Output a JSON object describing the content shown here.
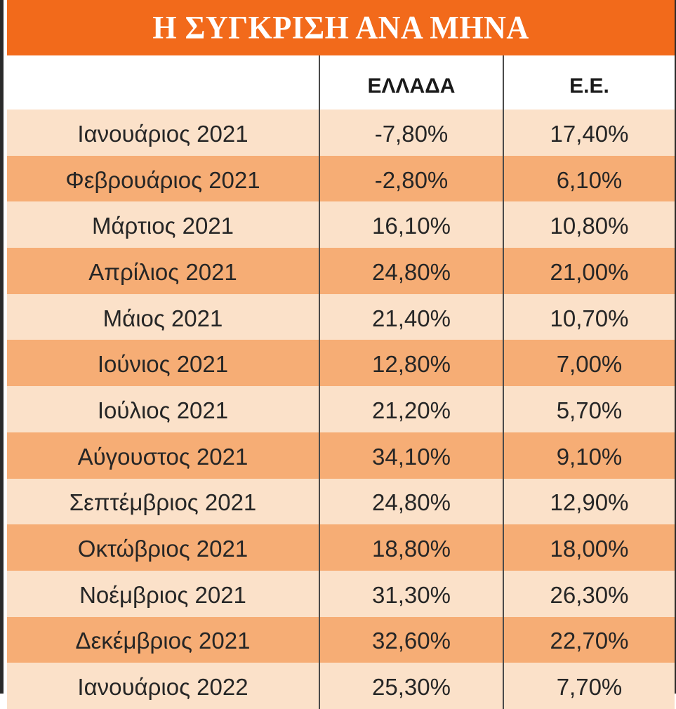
{
  "chart_data": {
    "type": "table",
    "title": "Η ΣΥΓΚΡΙΣΗ ΑΝΑ ΜΗΝΑ",
    "columns": [
      "",
      "ΕΛΛΑΔΑ",
      "Ε.Ε."
    ],
    "rows": [
      {
        "month": "Ιανουάριος 2021",
        "greece": "-7,80%",
        "eu": "17,40%"
      },
      {
        "month": "Φεβρουάριος 2021",
        "greece": "-2,80%",
        "eu": "6,10%"
      },
      {
        "month": "Μάρτιος 2021",
        "greece": "16,10%",
        "eu": "10,80%"
      },
      {
        "month": "Απρίλιος 2021",
        "greece": "24,80%",
        "eu": "21,00%"
      },
      {
        "month": "Μάιος 2021",
        "greece": "21,40%",
        "eu": "10,70%"
      },
      {
        "month": "Ιούνιος 2021",
        "greece": "12,80%",
        "eu": "7,00%"
      },
      {
        "month": "Ιούλιος 2021",
        "greece": "21,20%",
        "eu": "5,70%"
      },
      {
        "month": "Αύγουστος 2021",
        "greece": "34,10%",
        "eu": "9,10%"
      },
      {
        "month": "Σεπτέμβριος 2021",
        "greece": "24,80%",
        "eu": "12,90%"
      },
      {
        "month": "Οκτώβριος 2021",
        "greece": "18,80%",
        "eu": "18,00%"
      },
      {
        "month": "Νοέμβριος 2021",
        "greece": "31,30%",
        "eu": "26,30%"
      },
      {
        "month": "Δεκέμβριος 2021",
        "greece": "32,60%",
        "eu": "22,70%"
      },
      {
        "month": "Ιανουάριος 2022",
        "greece": "25,30%",
        "eu": "7,70%"
      }
    ]
  },
  "colors": {
    "title_bg": "#f26a1b",
    "row_light": "#fbe1c9",
    "row_dark": "#f6ad75"
  }
}
